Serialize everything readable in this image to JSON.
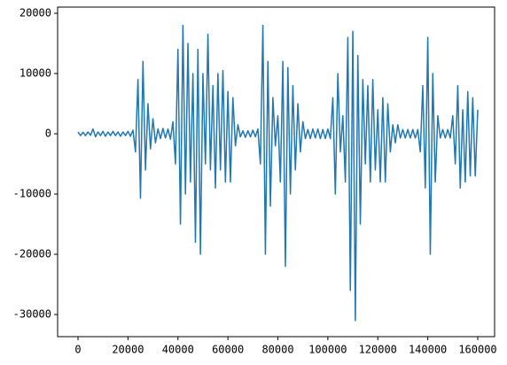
{
  "chart_data": {
    "type": "line",
    "x": [
      0,
      1000,
      2000,
      3000,
      4000,
      5000,
      6000,
      7000,
      8000,
      9000,
      10000,
      11000,
      12000,
      13000,
      14000,
      15000,
      16000,
      17000,
      18000,
      19000,
      20000,
      21000,
      22000,
      23000,
      24000,
      25000,
      26000,
      27000,
      28000,
      29000,
      30000,
      31000,
      32000,
      33000,
      34000,
      35000,
      36000,
      37000,
      38000,
      39000,
      40000,
      41000,
      42000,
      43000,
      44000,
      45000,
      46000,
      47000,
      48000,
      49000,
      50000,
      51000,
      52000,
      53000,
      54000,
      55000,
      56000,
      57000,
      58000,
      59000,
      60000,
      61000,
      62000,
      63000,
      64000,
      65000,
      66000,
      67000,
      68000,
      69000,
      70000,
      71000,
      72000,
      73000,
      74000,
      75000,
      76000,
      77000,
      78000,
      79000,
      80000,
      81000,
      82000,
      83000,
      84000,
      85000,
      86000,
      87000,
      88000,
      89000,
      90000,
      91000,
      92000,
      93000,
      94000,
      95000,
      96000,
      97000,
      98000,
      99000,
      100000,
      101000,
      102000,
      103000,
      104000,
      105000,
      106000,
      107000,
      108000,
      109000,
      110000,
      111000,
      112000,
      113000,
      114000,
      115000,
      116000,
      117000,
      118000,
      119000,
      120000,
      121000,
      122000,
      123000,
      124000,
      125000,
      126000,
      127000,
      128000,
      129000,
      130000,
      131000,
      132000,
      133000,
      134000,
      135000,
      136000,
      137000,
      138000,
      139000,
      140000,
      141000,
      142000,
      143000,
      144000,
      145000,
      146000,
      147000,
      148000,
      149000,
      150000,
      151000,
      152000,
      153000,
      154000,
      155000,
      156000,
      157000,
      158000,
      159000,
      160000
    ],
    "series": [
      {
        "color": "#1f77b4",
        "values": [
          300,
          -300,
          250,
          -300,
          300,
          -250,
          800,
          -500,
          300,
          -300,
          400,
          -400,
          300,
          -300,
          400,
          -300,
          300,
          -400,
          300,
          -300,
          400,
          -400,
          600,
          -3000,
          9000,
          -10700,
          12000,
          -6000,
          5000,
          -2500,
          2500,
          -1500,
          800,
          -800,
          900,
          -700,
          800,
          -900,
          2000,
          -5000,
          14000,
          -15000,
          18000,
          -10000,
          15000,
          -8000,
          10000,
          -18000,
          14000,
          -20000,
          10000,
          -5000,
          16500,
          -6000,
          8000,
          -9000,
          10000,
          -6000,
          10500,
          -8000,
          7000,
          -8000,
          6000,
          -2000,
          1500,
          -500,
          500,
          -600,
          500,
          -500,
          600,
          -500,
          800,
          -5000,
          18000,
          -20000,
          12000,
          -12000,
          6000,
          -2000,
          3000,
          -8000,
          12000,
          -22000,
          11000,
          -10000,
          8000,
          -6000,
          5000,
          -3000,
          2000,
          -800,
          700,
          -800,
          800,
          -700,
          800,
          -800,
          700,
          -800,
          800,
          -800,
          6000,
          -10000,
          10000,
          -3000,
          3000,
          -8000,
          16000,
          -26000,
          17000,
          -31000,
          13000,
          -15000,
          9000,
          -5000,
          8000,
          -8000,
          9000,
          -6000,
          4000,
          -8000,
          6000,
          -8000,
          5000,
          -3000,
          1500,
          -1500,
          1500,
          -700,
          700,
          -700,
          700,
          -700,
          700,
          -700,
          700,
          -3000,
          8000,
          -9000,
          16000,
          -20000,
          10000,
          -8000,
          3000,
          -700,
          700,
          -700,
          700,
          -700,
          3000,
          -5000,
          8000,
          -9000,
          4000,
          -8000,
          7000,
          -7000,
          6000,
          -7000,
          4000
        ]
      }
    ],
    "xlim": [
      -8160,
      166740
    ],
    "ylim": [
      -33670,
      21030
    ],
    "xticks": [
      0,
      20000,
      40000,
      60000,
      80000,
      100000,
      120000,
      140000,
      160000
    ],
    "yticks": [
      -30000,
      -20000,
      -10000,
      0,
      10000,
      20000
    ]
  }
}
